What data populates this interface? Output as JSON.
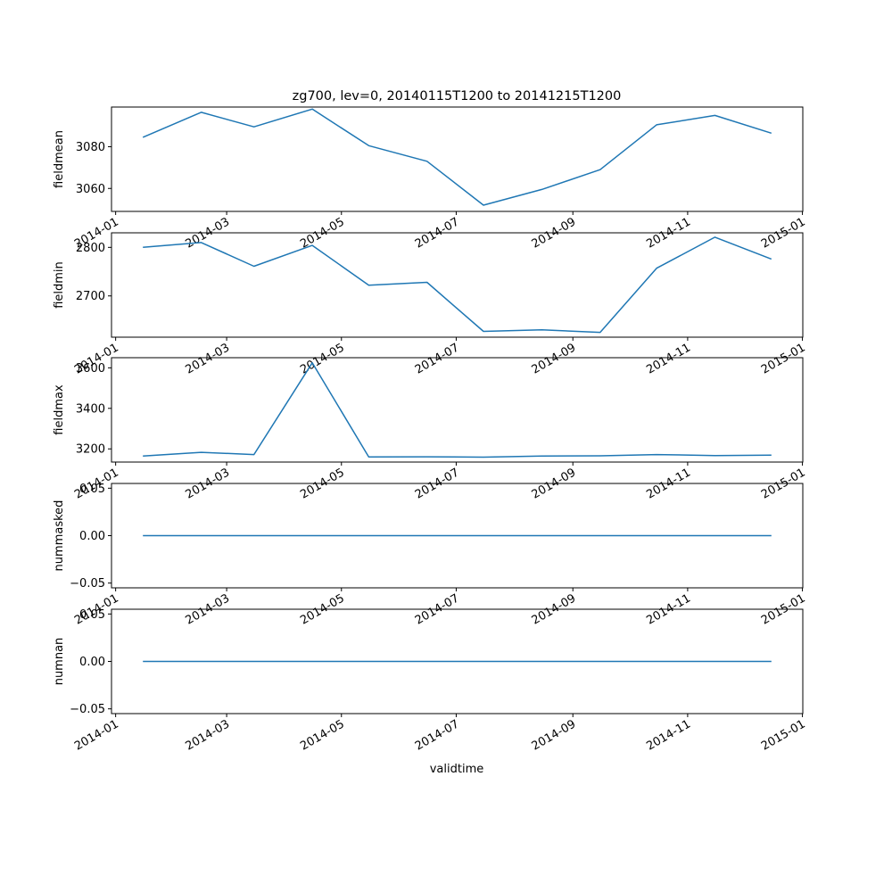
{
  "chart_data": {
    "type": "line",
    "title": "zg700, lev=0, 20140115T1200 to 20141215T1200",
    "xlabel": "validtime",
    "x": [
      "2014-01-15",
      "2014-02-15",
      "2014-03-15",
      "2014-04-15",
      "2014-05-15",
      "2014-06-15",
      "2014-07-15",
      "2014-08-15",
      "2014-09-15",
      "2014-10-15",
      "2014-11-15",
      "2014-12-15"
    ],
    "xlim": [
      "2014-01-01",
      "2015-01-01"
    ],
    "xticks": [
      "2014-01",
      "2014-03",
      "2014-05",
      "2014-07",
      "2014-09",
      "2014-11",
      "2015-01"
    ],
    "grid": false,
    "panels": [
      {
        "ylabel": "fieldmean",
        "ylim": [
          3049,
          3099
        ],
        "yticks": [
          "3060",
          "3080"
        ],
        "yticks_values": [
          3060,
          3080
        ],
        "values": [
          3084.5,
          3096.5,
          3089.5,
          3098,
          3080.5,
          3073,
          3052,
          3059.5,
          3069,
          3090.5,
          3095,
          3086.5
        ]
      },
      {
        "ylabel": "fieldmin",
        "ylim": [
          2615,
          2830
        ],
        "yticks": [
          "2700",
          "2800"
        ],
        "yticks_values": [
          2700,
          2800
        ],
        "values": [
          2800,
          2810,
          2761,
          2804,
          2722,
          2728,
          2627,
          2630,
          2625,
          2757,
          2821,
          2776
        ]
      },
      {
        "ylabel": "fieldmax",
        "ylim": [
          3135,
          3650
        ],
        "yticks": [
          "3200",
          "3400",
          "3600"
        ],
        "yticks_values": [
          3200,
          3400,
          3600
        ],
        "values": [
          3165,
          3183,
          3172,
          3625,
          3160,
          3161,
          3159,
          3165,
          3166,
          3172,
          3167,
          3169
        ]
      },
      {
        "ylabel": "nummasked",
        "ylim": [
          -0.055,
          0.055
        ],
        "yticks": [
          "−0.05",
          "0.00",
          "0.05"
        ],
        "yticks_values": [
          -0.05,
          0,
          0.05
        ],
        "values": [
          0,
          0,
          0,
          0,
          0,
          0,
          0,
          0,
          0,
          0,
          0,
          0
        ]
      },
      {
        "ylabel": "numnan",
        "ylim": [
          -0.055,
          0.055
        ],
        "yticks": [
          "−0.05",
          "0.00",
          "0.05"
        ],
        "yticks_values": [
          -0.05,
          0,
          0.05
        ],
        "values": [
          0,
          0,
          0,
          0,
          0,
          0,
          0,
          0,
          0,
          0,
          0,
          0
        ]
      }
    ]
  },
  "colors": {
    "series": "#1f77b4",
    "axes": "#000000",
    "background": "#ffffff"
  }
}
